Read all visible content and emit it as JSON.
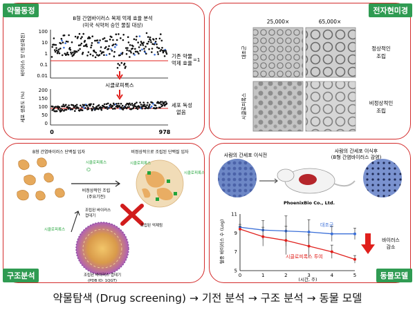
{
  "caption": "약물탐색 (Drug screening) → 기전 분석 → 구조 분석 → 동물 모델",
  "colors": {
    "frame": "#d32a2a",
    "tag_bg": "#2f9b52",
    "accent_red": "#e0201c",
    "series_blue": "#3a6fd8"
  },
  "panel_screening": {
    "tag": "약물동정",
    "title_line1": "B형 간염바이러스 복제 억제 효율 분석",
    "title_line2": "(미국 식약처 승인 물질 대상)",
    "top_plot": {
      "ylabel": "바이러스 양 (정상화된)",
      "yticks": [
        "100",
        "10",
        "1",
        "0.1",
        "0.01"
      ],
      "annotation_line1": "기존 약물",
      "annotation_line2": "억제 효율",
      "annotation_value": "=1"
    },
    "compound_label": "시클로피록스",
    "bottom_plot": {
      "ylabel": "세포 생존도 (%)",
      "yticks": [
        "200",
        "150",
        "100",
        "50",
        "0"
      ],
      "annotation_line1": "세포 독성",
      "annotation_line2": "없음"
    },
    "x_start": "0",
    "x_end": "978"
  },
  "panel_em": {
    "tag": "전자현미경",
    "mag_left": "25,000×",
    "mag_right": "65,000×",
    "row1_label": "대조군",
    "row1_note_line1": "정상적인",
    "row1_note_line2": "조립",
    "row2_label": "시클로피록스",
    "row2_note_line1": "비정상적인",
    "row2_note_line2": "조립"
  },
  "panel_structure": {
    "tag": "구조분석",
    "dimer_label": "B형 간염바이러스 단백질 입자",
    "abnormal_label": "비정상적으로 조립된 단백질 입자",
    "drug_label_1": "시클로피록스",
    "drug_label_2": "시클로피록스",
    "drug_label_3": "시클로피록스",
    "drug_label_4": "시클로피록스",
    "abnormal_assembly_line1": "비정상적인 조립",
    "abnormal_assembly_line2": "(주요기전)",
    "assembled_line1": "조립된 바이러스",
    "assembled_line2": "껍데기",
    "inhibited_label": "조립된 억제됨",
    "capsid_line1": "조립된 바이러스 껍데기",
    "capsid_line2": "(PDB ID: 1QGT)"
  },
  "panel_animal": {
    "tag": "동물모델",
    "left_cell_label": "사람의 간세포 이식전",
    "right_cell_line1": "사람의 간세포 이식후",
    "right_cell_line2": "(B형 간염바이러스 감염)",
    "company": "PhoenixBio Co., Ltd.",
    "chart_ylabel": "혈중 바이러스 수 (Log)",
    "xlabel": "(시간, 주)",
    "legend_control": "대조군",
    "legend_drug": "시클로피록스 투여",
    "decrease_line1": "바이러스",
    "decrease_line2": "감소"
  },
  "chart_data": {
    "type": "line",
    "x": [
      0,
      1,
      2,
      3,
      4,
      5
    ],
    "xlim": [
      0,
      5
    ],
    "ylim": [
      5,
      11
    ],
    "yticks": [
      5,
      7,
      9,
      11
    ],
    "xlabel": "(시간, 주)",
    "ylabel": "혈중 바이러스 수 (Log)",
    "series": [
      {
        "name": "대조군",
        "color": "#3a6fd8",
        "values": [
          9.6,
          9.3,
          9.2,
          9.1,
          8.9,
          8.9
        ],
        "err": [
          0.3,
          1.0,
          1.6,
          1.3,
          0.8,
          0.6
        ]
      },
      {
        "name": "시클로피록스 투여",
        "color": "#e0201c",
        "values": [
          9.4,
          8.6,
          8.2,
          7.6,
          7.0,
          6.2
        ],
        "err": [
          0.3,
          1.0,
          1.5,
          1.2,
          0.7,
          0.4
        ]
      }
    ]
  }
}
